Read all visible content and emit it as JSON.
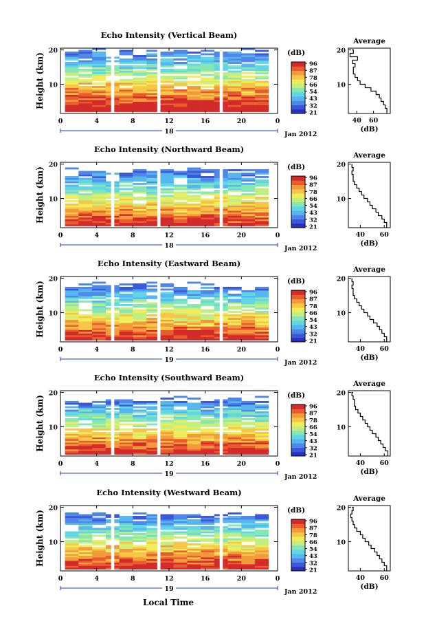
{
  "figure": {
    "xlabel": "Local Time",
    "average_title": "Average",
    "average_xlabel": "(dB)",
    "colorbar_label": "(dB)",
    "colorbar_ticks": [
      "96",
      "87",
      "78",
      "66",
      "54",
      "43",
      "32",
      "21"
    ]
  },
  "colormap": [
    "#2b2fbf",
    "#3b58d8",
    "#4f86ea",
    "#56b6f0",
    "#5fd7e6",
    "#86e6b4",
    "#c3ee80",
    "#f1ec5a",
    "#f7c646",
    "#f39a3a",
    "#ea5c30",
    "#d42a2a"
  ],
  "chart_data": [
    {
      "type": "heatmap",
      "title": "Echo Intensity (Vertical Beam)",
      "ylabel": "Height (km)",
      "xlim": [
        0,
        24
      ],
      "ylim": [
        1.5,
        20.5
      ],
      "x_ticks": [
        "0",
        "4",
        "8",
        "12",
        "16",
        "20",
        "0"
      ],
      "y_ticks": [
        "20",
        "10"
      ],
      "date_label": "Jan 2012",
      "day_marker": "18",
      "colorbar_ticks": [
        "96",
        "87",
        "78",
        "66",
        "54",
        "43",
        "32",
        "21"
      ],
      "data_gaps_hours": [
        [
          5.6,
          5.95
        ],
        [
          10.7,
          11.05
        ],
        [
          17.6,
          17.95
        ]
      ],
      "average_profile": {
        "xlim": [
          30,
          80
        ],
        "x_ticks": [
          "40",
          "60"
        ],
        "y_ticks": [
          "20",
          "10"
        ],
        "height_km": [
          2,
          3,
          4,
          5,
          6,
          7,
          8,
          9,
          10,
          11,
          12,
          13,
          14,
          15,
          16,
          17,
          18,
          19,
          20
        ],
        "intensity_db": [
          76,
          74,
          72,
          69,
          67,
          63,
          57,
          50,
          44,
          41,
          38,
          36,
          36,
          38,
          35,
          41,
          32,
          36,
          34
        ]
      }
    },
    {
      "type": "heatmap",
      "title": "Echo Intensity (Northward Beam)",
      "ylabel": "Height (km)",
      "xlim": [
        0,
        24
      ],
      "ylim": [
        1.5,
        20.5
      ],
      "x_ticks": [
        "0",
        "4",
        "8",
        "12",
        "16",
        "20",
        "0"
      ],
      "y_ticks": [
        "20",
        "10"
      ],
      "date_label": "Jan 2012",
      "day_marker": "18",
      "colorbar_ticks": [
        "96",
        "87",
        "78",
        "66",
        "54",
        "43",
        "32",
        "21"
      ],
      "data_gaps_hours": [
        [
          5.6,
          5.95
        ],
        [
          10.7,
          11.05
        ],
        [
          17.6,
          17.95
        ]
      ],
      "average_profile": {
        "xlim": [
          30,
          65
        ],
        "x_ticks": [
          "40",
          "60"
        ],
        "y_ticks": [
          "20",
          "10"
        ],
        "height_km": [
          2,
          3,
          4,
          5,
          6,
          7,
          8,
          9,
          10,
          11,
          12,
          13,
          14,
          15,
          16,
          17,
          18,
          19,
          20
        ],
        "intensity_db": [
          62,
          60,
          58,
          55,
          53,
          50,
          48,
          46,
          43,
          41,
          39,
          37,
          35,
          34,
          34,
          33,
          34,
          33,
          33
        ]
      }
    },
    {
      "type": "heatmap",
      "title": "Echo Intensity (Eastward Beam)",
      "ylabel": "Height (km)",
      "xlim": [
        0,
        24
      ],
      "ylim": [
        1.5,
        20.5
      ],
      "x_ticks": [
        "0",
        "4",
        "8",
        "12",
        "16",
        "20",
        "0"
      ],
      "y_ticks": [
        "20",
        "10"
      ],
      "date_label": "Jan 2012",
      "day_marker": "19",
      "colorbar_ticks": [
        "96",
        "87",
        "78",
        "66",
        "54",
        "43",
        "32",
        "21"
      ],
      "data_gaps_hours": [
        [
          5.6,
          5.95
        ],
        [
          10.7,
          11.05
        ],
        [
          17.6,
          17.95
        ]
      ],
      "average_profile": {
        "xlim": [
          30,
          65
        ],
        "x_ticks": [
          "40",
          "60"
        ],
        "y_ticks": [
          "20",
          "10"
        ],
        "height_km": [
          2,
          3,
          4,
          5,
          6,
          7,
          8,
          9,
          10,
          11,
          12,
          13,
          14,
          15,
          16,
          17,
          18,
          19,
          20
        ],
        "intensity_db": [
          62,
          60,
          58,
          56,
          54,
          51,
          48,
          46,
          43,
          41,
          39,
          37,
          35,
          34,
          34,
          33,
          34,
          33,
          33
        ]
      }
    },
    {
      "type": "heatmap",
      "title": "Echo Intensity (Southward Beam)",
      "ylabel": "Height (km)",
      "xlim": [
        0,
        24
      ],
      "ylim": [
        1.5,
        20.5
      ],
      "x_ticks": [
        "0",
        "4",
        "8",
        "12",
        "16",
        "20",
        "0"
      ],
      "y_ticks": [
        "20",
        "10"
      ],
      "date_label": "Jan 2012",
      "day_marker": "19",
      "colorbar_ticks": [
        "96",
        "87",
        "78",
        "66",
        "54",
        "43",
        "32",
        "21"
      ],
      "data_gaps_hours": [
        [
          5.6,
          5.95
        ],
        [
          10.7,
          11.05
        ],
        [
          17.6,
          17.95
        ]
      ],
      "average_profile": {
        "xlim": [
          30,
          65
        ],
        "x_ticks": [
          "40",
          "60"
        ],
        "y_ticks": [
          "20",
          "10"
        ],
        "height_km": [
          2,
          3,
          4,
          5,
          6,
          7,
          8,
          9,
          10,
          11,
          12,
          13,
          14,
          15,
          16,
          17,
          18,
          19,
          20
        ],
        "intensity_db": [
          63,
          61,
          59,
          57,
          55,
          53,
          50,
          48,
          46,
          44,
          42,
          40,
          38,
          36,
          35,
          35,
          34,
          33,
          34
        ]
      }
    },
    {
      "type": "heatmap",
      "title": "Echo Intensity (Westward Beam)",
      "ylabel": "Height (km)",
      "xlim": [
        0,
        24
      ],
      "ylim": [
        1.5,
        20.5
      ],
      "x_ticks": [
        "0",
        "4",
        "8",
        "12",
        "16",
        "20",
        "0"
      ],
      "y_ticks": [
        "20",
        "10"
      ],
      "date_label": "Jan 2012",
      "day_marker": "19",
      "colorbar_ticks": [
        "96",
        "87",
        "78",
        "66",
        "54",
        "43",
        "32",
        "21"
      ],
      "data_gaps_hours": [
        [
          5.6,
          5.95
        ],
        [
          10.7,
          11.05
        ],
        [
          17.6,
          17.95
        ]
      ],
      "average_profile": {
        "xlim": [
          30,
          65
        ],
        "x_ticks": [
          "40",
          "60"
        ],
        "y_ticks": [
          "20",
          "10"
        ],
        "height_km": [
          2,
          3,
          4,
          5,
          6,
          7,
          8,
          9,
          10,
          11,
          12,
          13,
          14,
          15,
          16,
          17,
          18,
          19,
          20
        ],
        "intensity_db": [
          62,
          60,
          58,
          56,
          54,
          52,
          49,
          47,
          44,
          42,
          40,
          37,
          35,
          34,
          33,
          32,
          33,
          34,
          33
        ]
      }
    }
  ]
}
